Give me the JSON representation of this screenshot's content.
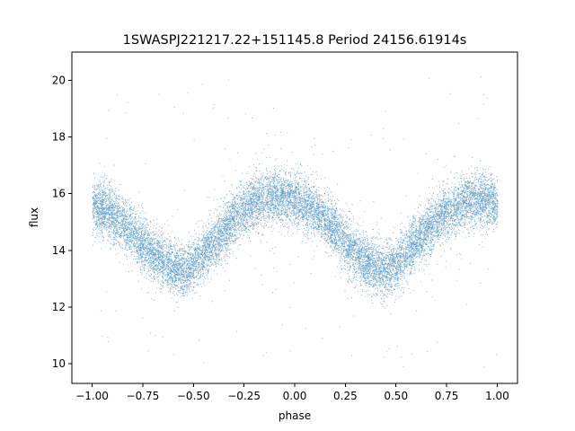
{
  "chart_data": {
    "type": "scatter",
    "title": "1SWASPJ221217.22+151145.8 Period 24156.61914s",
    "xlabel": "phase",
    "ylabel": "flux",
    "xlim": [
      -1.1,
      1.1
    ],
    "ylim": [
      9.3,
      21.0
    ],
    "xticks": [
      -1.0,
      -0.75,
      -0.5,
      -0.25,
      0.0,
      0.25,
      0.5,
      0.75,
      1.0
    ],
    "xtick_labels": [
      "−1.00",
      "−0.75",
      "−0.50",
      "−0.25",
      "0.00",
      "0.25",
      "0.50",
      "0.75",
      "1.00"
    ],
    "yticks": [
      10,
      12,
      14,
      16,
      18,
      20
    ],
    "ytick_labels": [
      "10",
      "12",
      "14",
      "16",
      "18",
      "20"
    ],
    "grid": false,
    "legend": "none",
    "point_color": "#1f77b4",
    "series": [
      {
        "description_points": "folded light curve, dense band",
        "x": [
          -1.0,
          -0.9,
          -0.8,
          -0.7,
          -0.6,
          -0.55,
          -0.5,
          -0.4,
          -0.3,
          -0.2,
          -0.1,
          0.0,
          0.1,
          0.2,
          0.3,
          0.4,
          0.45,
          0.5,
          0.6,
          0.7,
          0.8,
          0.9,
          1.0
        ],
        "y": [
          15.6,
          15.3,
          14.6,
          13.9,
          13.4,
          13.3,
          13.5,
          14.3,
          15.1,
          15.7,
          15.9,
          15.8,
          15.4,
          14.7,
          13.9,
          13.4,
          13.3,
          13.5,
          14.3,
          15.1,
          15.6,
          15.8,
          15.7
        ]
      }
    ]
  }
}
